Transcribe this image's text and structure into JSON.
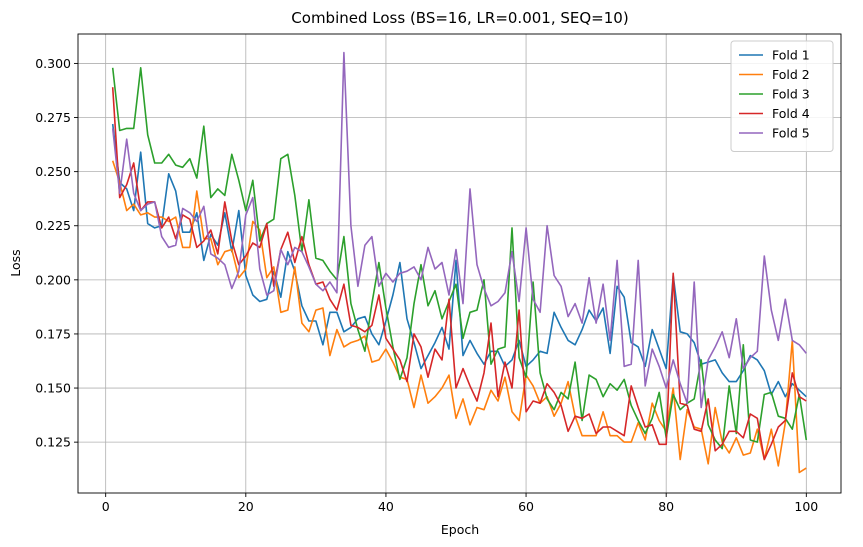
{
  "chart_data": {
    "type": "line",
    "title": "Combined Loss (BS=16, LR=0.001, SEQ=10)",
    "xlabel": "Epoch",
    "ylabel": "Loss",
    "xlim": [
      -3.95,
      104.95
    ],
    "ylim": [
      0.1015,
      0.3136
    ],
    "xticks": [
      0,
      20,
      40,
      60,
      80,
      100
    ],
    "yticks": [
      0.125,
      0.15,
      0.175,
      0.2,
      0.225,
      0.25,
      0.275,
      0.3
    ],
    "xtick_labels": [
      "0",
      "20",
      "40",
      "60",
      "80",
      "100"
    ],
    "ytick_labels": [
      "0.125",
      "0.150",
      "0.175",
      "0.200",
      "0.225",
      "0.250",
      "0.275",
      "0.300"
    ],
    "grid": true,
    "legend_position": "top-right",
    "series": [
      {
        "name": "Fold 1",
        "color": "#1f77b4",
        "x_start": 1,
        "values": [
          0.272,
          0.245,
          0.242,
          0.232,
          0.259,
          0.226,
          0.224,
          0.225,
          0.249,
          0.241,
          0.222,
          0.222,
          0.231,
          0.209,
          0.221,
          0.216,
          0.231,
          0.213,
          0.232,
          0.202,
          0.193,
          0.19,
          0.191,
          0.204,
          0.192,
          0.213,
          0.204,
          0.188,
          0.181,
          0.181,
          0.17,
          0.185,
          0.185,
          0.176,
          0.178,
          0.182,
          0.183,
          0.175,
          0.17,
          0.181,
          0.193,
          0.208,
          0.182,
          0.171,
          0.159,
          0.165,
          0.171,
          0.178,
          0.168,
          0.209,
          0.165,
          0.172,
          0.166,
          0.161,
          0.167,
          0.167,
          0.16,
          0.163,
          0.172,
          0.16,
          0.163,
          0.167,
          0.166,
          0.185,
          0.178,
          0.172,
          0.17,
          0.177,
          0.186,
          0.181,
          0.187,
          0.166,
          0.197,
          0.192,
          0.171,
          0.169,
          0.16,
          0.177,
          0.168,
          0.159,
          0.202,
          0.176,
          0.175,
          0.171,
          0.161,
          0.162,
          0.163,
          0.157,
          0.153,
          0.153,
          0.158,
          0.165,
          0.163,
          0.158,
          0.147,
          0.153,
          0.146,
          0.152,
          0.149,
          0.146
        ]
      },
      {
        "name": "Fold 2",
        "color": "#ff7f0e",
        "x_start": 1,
        "values": [
          0.255,
          0.245,
          0.232,
          0.235,
          0.23,
          0.231,
          0.229,
          0.229,
          0.227,
          0.229,
          0.215,
          0.215,
          0.241,
          0.219,
          0.219,
          0.207,
          0.213,
          0.214,
          0.201,
          0.205,
          0.227,
          0.223,
          0.201,
          0.206,
          0.185,
          0.186,
          0.206,
          0.18,
          0.176,
          0.186,
          0.187,
          0.165,
          0.177,
          0.169,
          0.171,
          0.172,
          0.174,
          0.162,
          0.163,
          0.168,
          0.162,
          0.155,
          0.154,
          0.141,
          0.156,
          0.143,
          0.146,
          0.15,
          0.156,
          0.136,
          0.145,
          0.133,
          0.141,
          0.14,
          0.149,
          0.144,
          0.155,
          0.139,
          0.135,
          0.156,
          0.151,
          0.143,
          0.146,
          0.137,
          0.143,
          0.153,
          0.137,
          0.128,
          0.128,
          0.128,
          0.139,
          0.128,
          0.128,
          0.125,
          0.125,
          0.134,
          0.126,
          0.143,
          0.135,
          0.13,
          0.15,
          0.117,
          0.14,
          0.132,
          0.131,
          0.115,
          0.141,
          0.125,
          0.12,
          0.127,
          0.119,
          0.12,
          0.131,
          0.117,
          0.131,
          0.114,
          0.134,
          0.172,
          0.111,
          0.113
        ]
      },
      {
        "name": "Fold 3",
        "color": "#2ca02c",
        "x_start": 1,
        "values": [
          0.298,
          0.269,
          0.27,
          0.27,
          0.298,
          0.267,
          0.254,
          0.254,
          0.258,
          0.253,
          0.252,
          0.256,
          0.247,
          0.271,
          0.238,
          0.242,
          0.239,
          0.258,
          0.246,
          0.232,
          0.246,
          0.218,
          0.226,
          0.228,
          0.256,
          0.258,
          0.239,
          0.213,
          0.237,
          0.21,
          0.209,
          0.204,
          0.2,
          0.22,
          0.189,
          0.177,
          0.167,
          0.189,
          0.208,
          0.187,
          0.169,
          0.154,
          0.164,
          0.189,
          0.207,
          0.188,
          0.195,
          0.182,
          0.19,
          0.198,
          0.173,
          0.185,
          0.186,
          0.2,
          0.161,
          0.168,
          0.169,
          0.224,
          0.164,
          0.155,
          0.199,
          0.157,
          0.145,
          0.14,
          0.148,
          0.145,
          0.162,
          0.135,
          0.156,
          0.154,
          0.146,
          0.152,
          0.149,
          0.154,
          0.142,
          0.135,
          0.129,
          0.136,
          0.148,
          0.127,
          0.147,
          0.14,
          0.143,
          0.145,
          0.163,
          0.133,
          0.126,
          0.122,
          0.151,
          0.129,
          0.17,
          0.126,
          0.125,
          0.147,
          0.148,
          0.137,
          0.136,
          0.131,
          0.147,
          0.126
        ]
      },
      {
        "name": "Fold 4",
        "color": "#d62728",
        "x_start": 1,
        "values": [
          0.289,
          0.238,
          0.244,
          0.254,
          0.232,
          0.236,
          0.236,
          0.224,
          0.229,
          0.219,
          0.23,
          0.228,
          0.215,
          0.218,
          0.223,
          0.212,
          0.236,
          0.218,
          0.207,
          0.211,
          0.217,
          0.215,
          0.226,
          0.197,
          0.214,
          0.222,
          0.208,
          0.22,
          0.207,
          0.198,
          0.199,
          0.191,
          0.186,
          0.198,
          0.179,
          0.178,
          0.176,
          0.179,
          0.193,
          0.173,
          0.168,
          0.163,
          0.153,
          0.175,
          0.169,
          0.155,
          0.168,
          0.163,
          0.191,
          0.15,
          0.159,
          0.151,
          0.144,
          0.157,
          0.18,
          0.146,
          0.162,
          0.15,
          0.186,
          0.139,
          0.144,
          0.143,
          0.152,
          0.148,
          0.142,
          0.13,
          0.137,
          0.136,
          0.138,
          0.129,
          0.132,
          0.132,
          0.13,
          0.128,
          0.151,
          0.141,
          0.132,
          0.133,
          0.124,
          0.124,
          0.203,
          0.143,
          0.142,
          0.131,
          0.13,
          0.145,
          0.121,
          0.124,
          0.13,
          0.13,
          0.127,
          0.138,
          0.136,
          0.117,
          0.124,
          0.132,
          0.135,
          0.157,
          0.146,
          0.144
        ]
      },
      {
        "name": "Fold 5",
        "color": "#9467bd",
        "x_start": 1,
        "values": [
          0.27,
          0.24,
          0.265,
          0.24,
          0.232,
          0.235,
          0.236,
          0.22,
          0.215,
          0.216,
          0.233,
          0.231,
          0.227,
          0.234,
          0.212,
          0.21,
          0.207,
          0.196,
          0.204,
          0.23,
          0.238,
          0.205,
          0.193,
          0.195,
          0.214,
          0.207,
          0.215,
          0.213,
          0.206,
          0.198,
          0.195,
          0.199,
          0.194,
          0.305,
          0.225,
          0.197,
          0.216,
          0.22,
          0.197,
          0.203,
          0.199,
          0.203,
          0.204,
          0.206,
          0.2,
          0.215,
          0.205,
          0.208,
          0.193,
          0.214,
          0.189,
          0.242,
          0.207,
          0.196,
          0.188,
          0.19,
          0.194,
          0.213,
          0.19,
          0.224,
          0.191,
          0.185,
          0.225,
          0.202,
          0.197,
          0.183,
          0.189,
          0.18,
          0.201,
          0.18,
          0.198,
          0.172,
          0.209,
          0.16,
          0.161,
          0.209,
          0.151,
          0.168,
          0.16,
          0.15,
          0.163,
          0.152,
          0.143,
          0.199,
          0.141,
          0.163,
          0.169,
          0.176,
          0.164,
          0.182,
          0.159,
          0.164,
          0.167,
          0.211,
          0.186,
          0.172,
          0.191,
          0.172,
          0.17,
          0.166
        ]
      }
    ]
  }
}
